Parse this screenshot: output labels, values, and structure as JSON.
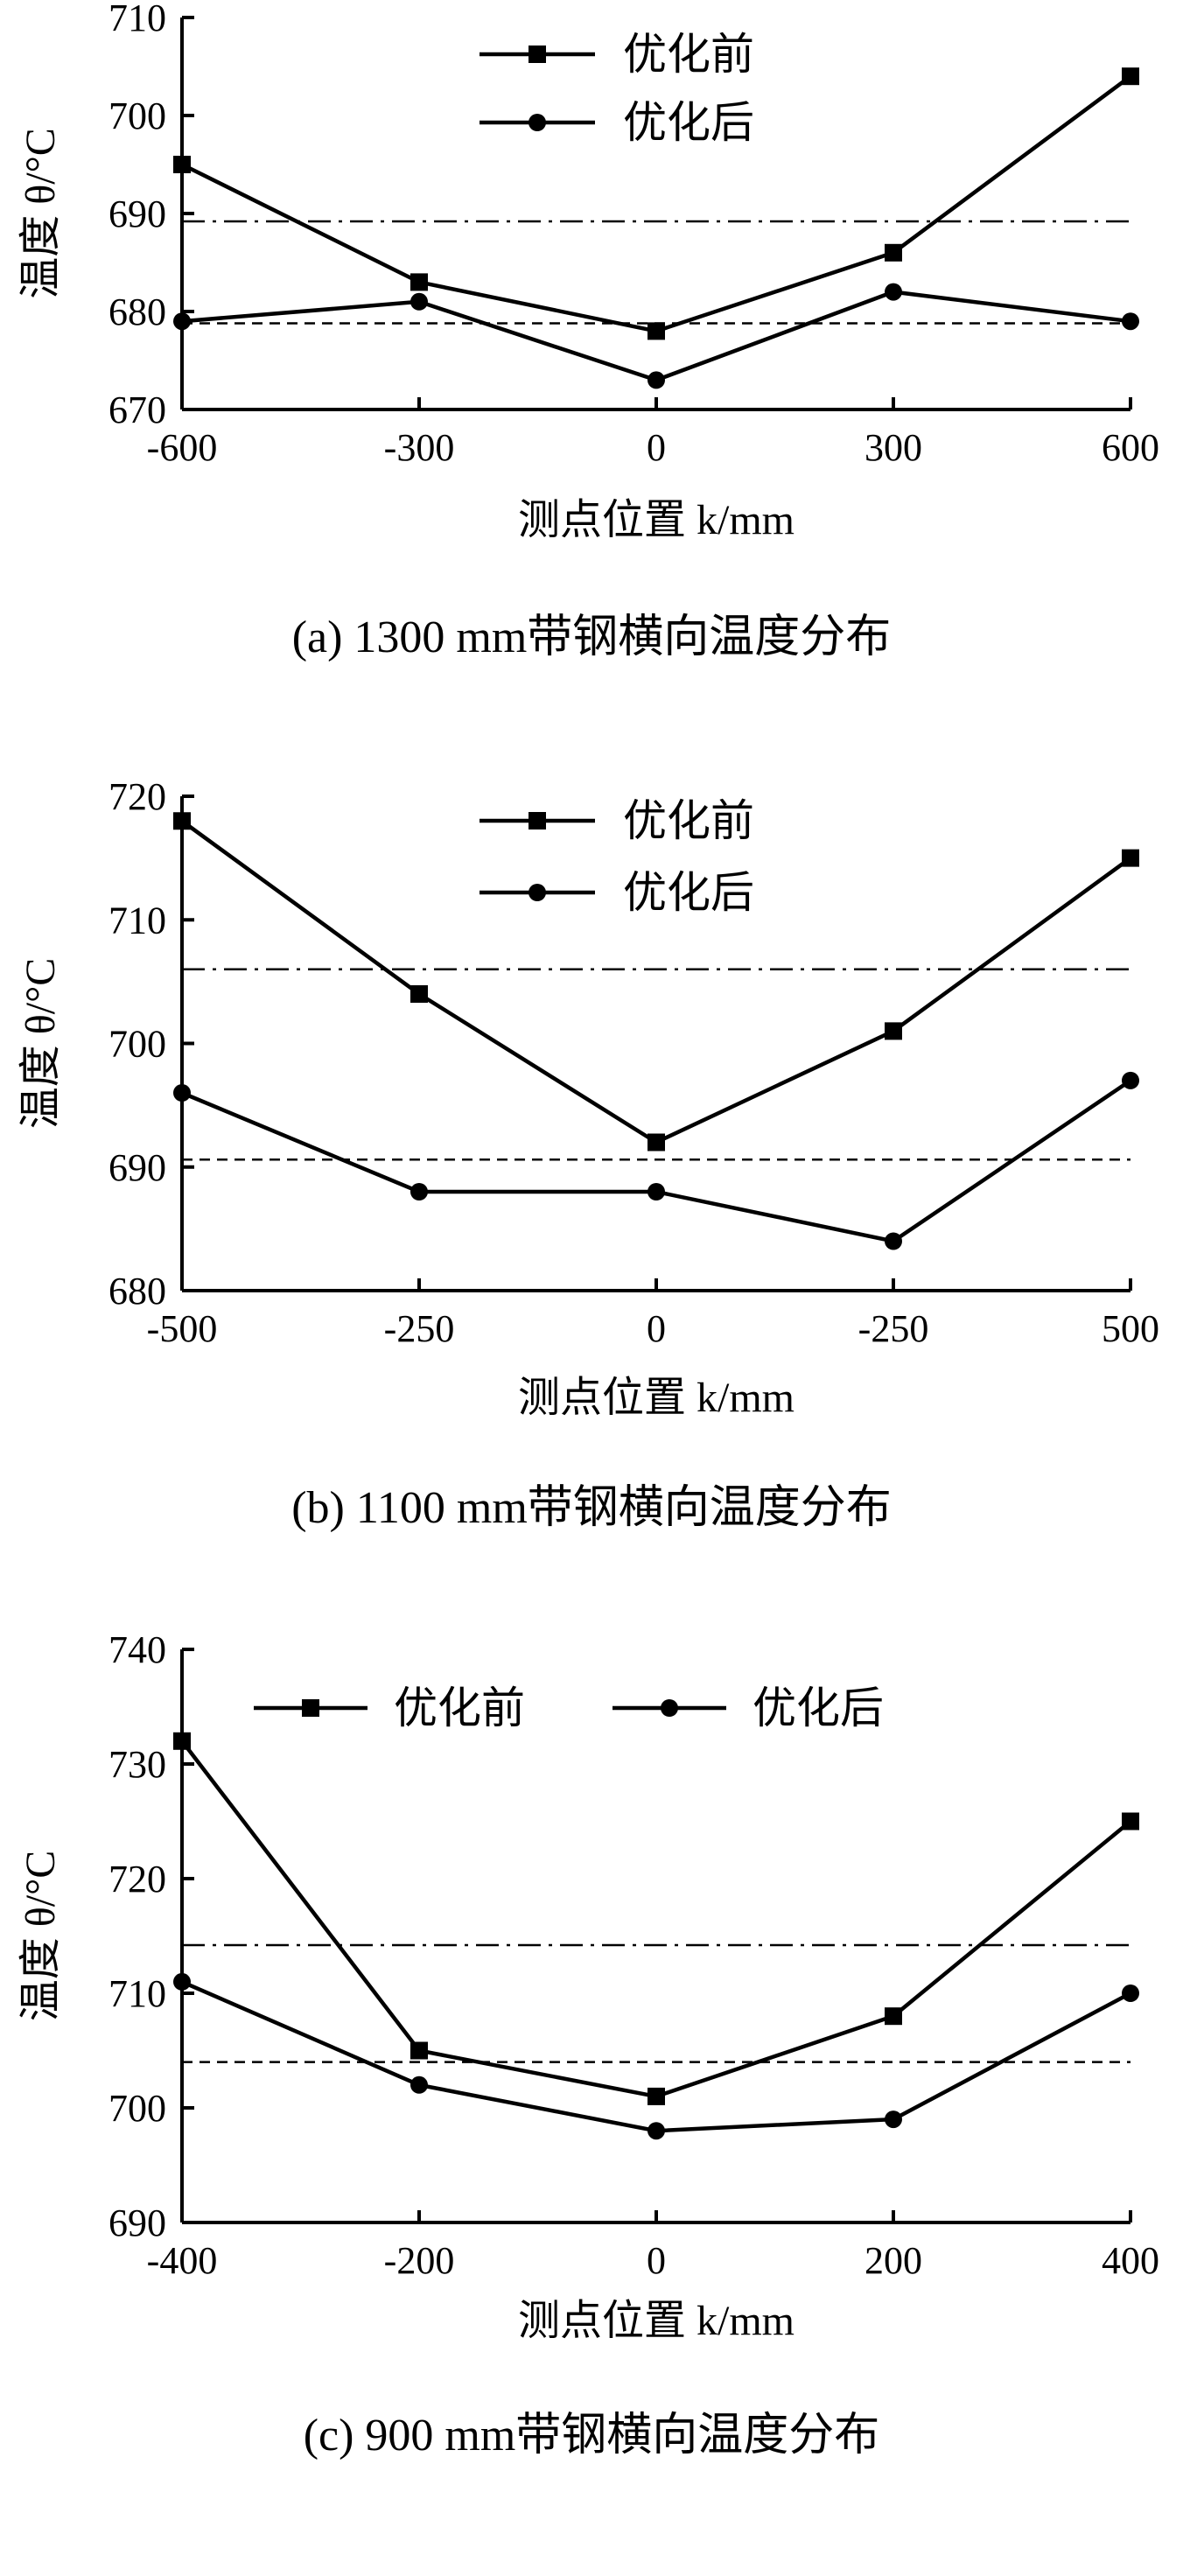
{
  "figure": {
    "captions": [
      "(a) 1300 mm带钢横向温度分布",
      "(b) 1100 mm带钢横向温度分布",
      "(c) 900 mm带钢横向温度分布"
    ]
  },
  "chart_data": [
    {
      "type": "line",
      "caption": "(a) 1300 mm带钢横向温度分布",
      "xlabel": "测点位置 k/mm",
      "ylabel": "温度 θ/°C",
      "x_tick_labels": [
        "-600",
        "-300",
        "0",
        "300",
        "600"
      ],
      "ylim": [
        670,
        710
      ],
      "y_ticks": [
        670,
        680,
        690,
        700,
        710
      ],
      "legend_position": "top-center",
      "series": [
        {
          "name": "优化前",
          "marker": "square",
          "values": [
            695,
            683,
            678,
            686,
            704
          ]
        },
        {
          "name": "优化后",
          "marker": "circle",
          "values": [
            679,
            681,
            673,
            682,
            679
          ]
        }
      ],
      "reference_lines": [
        {
          "style": "dash-dot",
          "y": 689.2
        },
        {
          "style": "dashed",
          "y": 678.8
        }
      ]
    },
    {
      "type": "line",
      "caption": "(b) 1100 mm带钢横向温度分布",
      "xlabel": "测点位置 k/mm",
      "ylabel": "温度 θ/°C",
      "x_tick_labels": [
        "-500",
        "-250",
        "0",
        "-250",
        "500"
      ],
      "ylim": [
        680,
        720
      ],
      "y_ticks": [
        680,
        690,
        700,
        710,
        720
      ],
      "legend_position": "top-center",
      "series": [
        {
          "name": "优化前",
          "marker": "square",
          "values": [
            718,
            704,
            692,
            701,
            715
          ]
        },
        {
          "name": "优化后",
          "marker": "circle",
          "values": [
            696,
            688,
            688,
            684,
            697
          ]
        }
      ],
      "reference_lines": [
        {
          "style": "dash-dot",
          "y": 706
        },
        {
          "style": "dashed",
          "y": 690.6
        }
      ]
    },
    {
      "type": "line",
      "caption": "(c) 900 mm带钢横向温度分布",
      "xlabel": "测点位置 k/mm",
      "ylabel": "温度 θ/°C",
      "x_tick_labels": [
        "-400",
        "-200",
        "0",
        "200",
        "400"
      ],
      "ylim": [
        690,
        740
      ],
      "y_ticks": [
        690,
        700,
        710,
        720,
        730,
        740
      ],
      "legend_position": "top",
      "series": [
        {
          "name": "优化前",
          "marker": "square",
          "values": [
            732,
            705,
            701,
            708,
            725
          ]
        },
        {
          "name": "优化后",
          "marker": "circle",
          "values": [
            711,
            702,
            698,
            699,
            710
          ]
        }
      ],
      "reference_lines": [
        {
          "style": "dash-dot",
          "y": 714.2
        },
        {
          "style": "dashed",
          "y": 704
        }
      ]
    }
  ]
}
